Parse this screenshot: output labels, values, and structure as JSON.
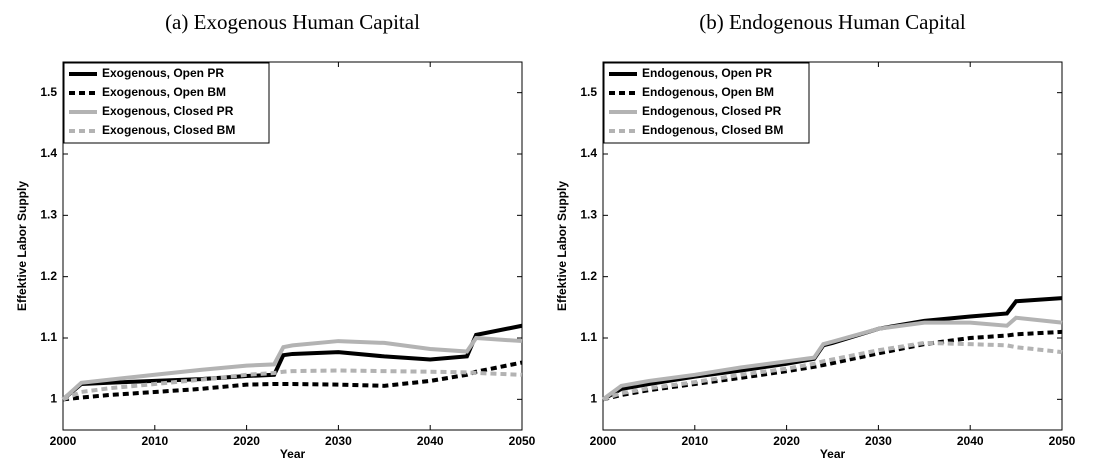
{
  "chart_data": [
    {
      "type": "line",
      "title": "(a) Exogenous Human Capital",
      "xlabel": "Year",
      "ylabel": "Effektive Labor Supply",
      "x": [
        2000,
        2002,
        2005,
        2010,
        2015,
        2020,
        2023,
        2024,
        2025,
        2030,
        2035,
        2040,
        2044,
        2045,
        2050
      ],
      "series": [
        {
          "name": "Exogenous, Open PR",
          "color": "#000000",
          "style": "solid",
          "values": [
            1.0,
            1.025,
            1.027,
            1.03,
            1.033,
            1.038,
            1.04,
            1.072,
            1.074,
            1.077,
            1.07,
            1.065,
            1.07,
            1.105,
            1.12
          ]
        },
        {
          "name": "Exogenous, Open BM",
          "color": "#000000",
          "style": "dashed",
          "values": [
            1.0,
            1.003,
            1.007,
            1.012,
            1.017,
            1.024,
            1.025,
            1.025,
            1.025,
            1.024,
            1.022,
            1.03,
            1.04,
            1.045,
            1.06
          ]
        },
        {
          "name": "Exogenous, Closed PR",
          "color": "#b3b3b3",
          "style": "solid",
          "values": [
            1.0,
            1.027,
            1.032,
            1.04,
            1.048,
            1.055,
            1.057,
            1.085,
            1.088,
            1.095,
            1.092,
            1.082,
            1.078,
            1.1,
            1.095
          ]
        },
        {
          "name": "Exogenous, Closed BM",
          "color": "#b3b3b3",
          "style": "dashed",
          "values": [
            1.0,
            1.012,
            1.018,
            1.025,
            1.032,
            1.04,
            1.043,
            1.045,
            1.046,
            1.047,
            1.046,
            1.045,
            1.044,
            1.043,
            1.04
          ]
        }
      ],
      "xlim": [
        2000,
        2050
      ],
      "xticks": [
        2000,
        2010,
        2020,
        2030,
        2040,
        2050
      ],
      "ylim": [
        0.95,
        1.55
      ],
      "yticks": [
        1,
        1.1,
        1.2,
        1.3,
        1.4,
        1.5
      ],
      "legend": "upper left"
    },
    {
      "type": "line",
      "title": "(b) Endogenous Human Capital",
      "xlabel": "Year",
      "ylabel": "Effektive Labor Supply",
      "x": [
        2000,
        2002,
        2005,
        2010,
        2015,
        2020,
        2023,
        2024,
        2025,
        2030,
        2035,
        2040,
        2044,
        2045,
        2050
      ],
      "series": [
        {
          "name": "Endogenous, Open PR",
          "color": "#000000",
          "style": "solid",
          "values": [
            1.0,
            1.017,
            1.025,
            1.037,
            1.047,
            1.058,
            1.066,
            1.088,
            1.092,
            1.115,
            1.128,
            1.135,
            1.14,
            1.16,
            1.165
          ]
        },
        {
          "name": "Endogenous, Open BM",
          "color": "#000000",
          "style": "dashed",
          "values": [
            1.0,
            1.007,
            1.015,
            1.025,
            1.035,
            1.046,
            1.053,
            1.056,
            1.059,
            1.075,
            1.09,
            1.1,
            1.104,
            1.106,
            1.11
          ]
        },
        {
          "name": "Endogenous, Closed PR",
          "color": "#b3b3b3",
          "style": "solid",
          "values": [
            1.0,
            1.022,
            1.03,
            1.04,
            1.052,
            1.062,
            1.068,
            1.09,
            1.094,
            1.115,
            1.125,
            1.125,
            1.12,
            1.133,
            1.125
          ]
        },
        {
          "name": "Endogenous, Closed BM",
          "color": "#b3b3b3",
          "style": "dashed",
          "values": [
            1.0,
            1.01,
            1.018,
            1.028,
            1.04,
            1.05,
            1.058,
            1.062,
            1.065,
            1.08,
            1.092,
            1.09,
            1.088,
            1.085,
            1.077
          ]
        }
      ],
      "xlim": [
        2000,
        2050
      ],
      "xticks": [
        2000,
        2010,
        2020,
        2030,
        2040,
        2050
      ],
      "ylim": [
        0.95,
        1.55
      ],
      "yticks": [
        1,
        1.1,
        1.2,
        1.3,
        1.4,
        1.5
      ],
      "legend": "upper left"
    }
  ]
}
